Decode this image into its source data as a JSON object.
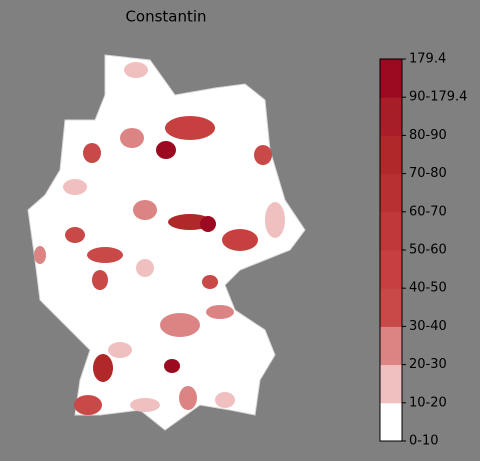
{
  "title": "Constantin",
  "colorbar": {
    "tick_labels": [
      "0-10",
      "10-20",
      "20-30",
      "30-40",
      "40-50",
      "50-60",
      "60-70",
      "70-80",
      "80-90",
      "90-179.4",
      "179.4"
    ],
    "colors": [
      "#ffffff",
      "#f0c0c0",
      "#dc8484",
      "#c94848",
      "#c64040",
      "#c03838",
      "#b83030",
      "#b02828",
      "#a81e28",
      "#9b0a20"
    ]
  }
}
